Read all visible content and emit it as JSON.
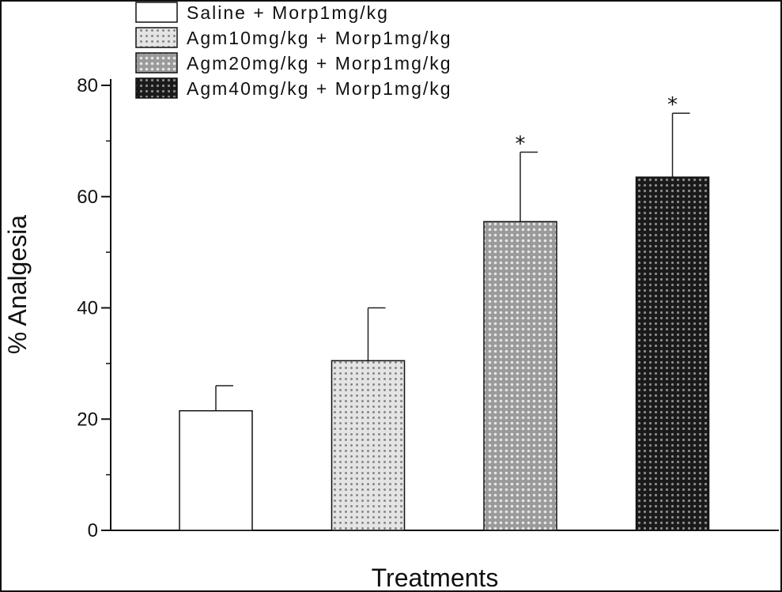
{
  "chart_data": {
    "type": "bar",
    "xlabel": "Treatments",
    "ylabel": "% Analgesia",
    "ylim": [
      0,
      80
    ],
    "yticks": [
      0,
      20,
      40,
      60,
      80
    ],
    "y_minor_step": 10,
    "grid": false,
    "legend_position": "top-left",
    "series": [
      {
        "name": "Saline + Morp1mg/kg",
        "value": 21.5,
        "error": 4.5,
        "pattern": "white",
        "significance": ""
      },
      {
        "name": "Agm10mg/kg + Morp1mg/kg",
        "value": 30.5,
        "error": 9.5,
        "pattern": "light-dots",
        "significance": ""
      },
      {
        "name": "Agm20mg/kg + Morp1mg/kg",
        "value": 55.5,
        "error": 12.5,
        "pattern": "medium-dots",
        "significance": "*"
      },
      {
        "name": "Agm40mg/kg + Morp1mg/kg",
        "value": 63.5,
        "error": 11.5,
        "pattern": "dark-dots",
        "significance": "*"
      }
    ]
  }
}
